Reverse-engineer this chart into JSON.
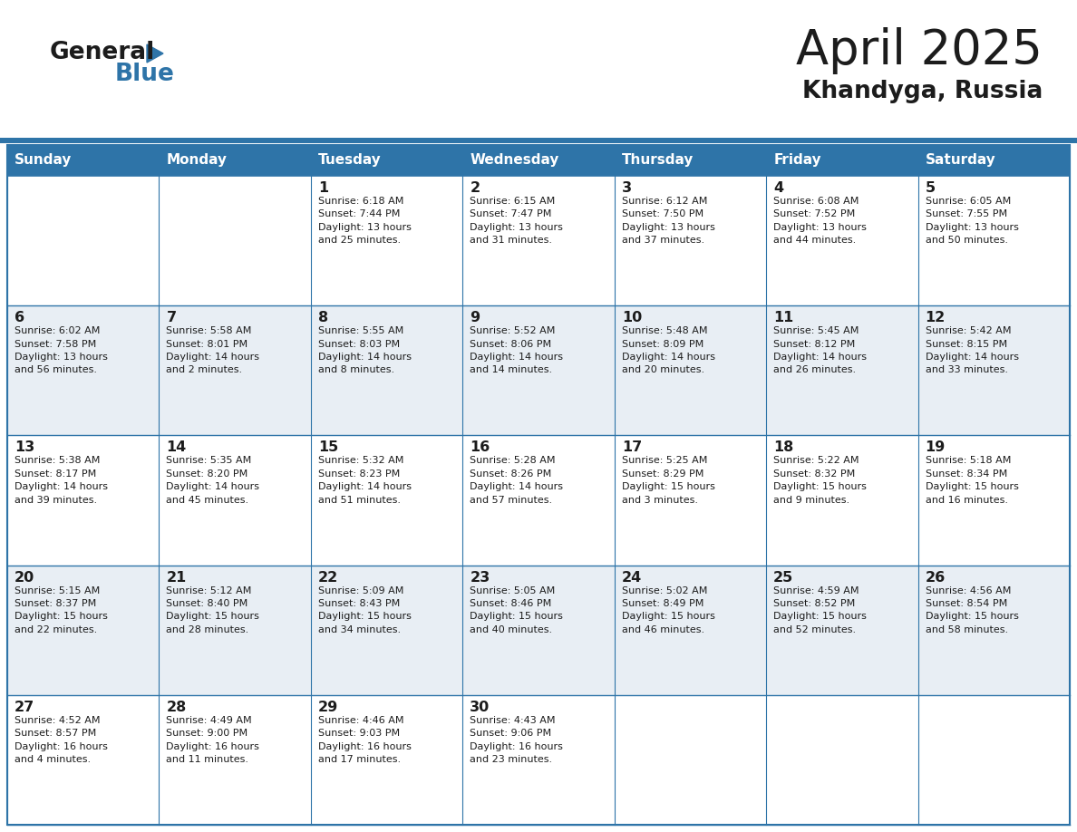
{
  "title": "April 2025",
  "subtitle": "Khandyga, Russia",
  "header_color": "#2E74A8",
  "header_text_color": "#FFFFFF",
  "row_colors": [
    "#FFFFFF",
    "#E8EEF4"
  ],
  "border_color": "#2E74A8",
  "cell_border_color": "#AAAAAA",
  "days_of_week": [
    "Sunday",
    "Monday",
    "Tuesday",
    "Wednesday",
    "Thursday",
    "Friday",
    "Saturday"
  ],
  "calendar_data": [
    [
      {
        "day": "",
        "info": ""
      },
      {
        "day": "",
        "info": ""
      },
      {
        "day": "1",
        "info": "Sunrise: 6:18 AM\nSunset: 7:44 PM\nDaylight: 13 hours\nand 25 minutes."
      },
      {
        "day": "2",
        "info": "Sunrise: 6:15 AM\nSunset: 7:47 PM\nDaylight: 13 hours\nand 31 minutes."
      },
      {
        "day": "3",
        "info": "Sunrise: 6:12 AM\nSunset: 7:50 PM\nDaylight: 13 hours\nand 37 minutes."
      },
      {
        "day": "4",
        "info": "Sunrise: 6:08 AM\nSunset: 7:52 PM\nDaylight: 13 hours\nand 44 minutes."
      },
      {
        "day": "5",
        "info": "Sunrise: 6:05 AM\nSunset: 7:55 PM\nDaylight: 13 hours\nand 50 minutes."
      }
    ],
    [
      {
        "day": "6",
        "info": "Sunrise: 6:02 AM\nSunset: 7:58 PM\nDaylight: 13 hours\nand 56 minutes."
      },
      {
        "day": "7",
        "info": "Sunrise: 5:58 AM\nSunset: 8:01 PM\nDaylight: 14 hours\nand 2 minutes."
      },
      {
        "day": "8",
        "info": "Sunrise: 5:55 AM\nSunset: 8:03 PM\nDaylight: 14 hours\nand 8 minutes."
      },
      {
        "day": "9",
        "info": "Sunrise: 5:52 AM\nSunset: 8:06 PM\nDaylight: 14 hours\nand 14 minutes."
      },
      {
        "day": "10",
        "info": "Sunrise: 5:48 AM\nSunset: 8:09 PM\nDaylight: 14 hours\nand 20 minutes."
      },
      {
        "day": "11",
        "info": "Sunrise: 5:45 AM\nSunset: 8:12 PM\nDaylight: 14 hours\nand 26 minutes."
      },
      {
        "day": "12",
        "info": "Sunrise: 5:42 AM\nSunset: 8:15 PM\nDaylight: 14 hours\nand 33 minutes."
      }
    ],
    [
      {
        "day": "13",
        "info": "Sunrise: 5:38 AM\nSunset: 8:17 PM\nDaylight: 14 hours\nand 39 minutes."
      },
      {
        "day": "14",
        "info": "Sunrise: 5:35 AM\nSunset: 8:20 PM\nDaylight: 14 hours\nand 45 minutes."
      },
      {
        "day": "15",
        "info": "Sunrise: 5:32 AM\nSunset: 8:23 PM\nDaylight: 14 hours\nand 51 minutes."
      },
      {
        "day": "16",
        "info": "Sunrise: 5:28 AM\nSunset: 8:26 PM\nDaylight: 14 hours\nand 57 minutes."
      },
      {
        "day": "17",
        "info": "Sunrise: 5:25 AM\nSunset: 8:29 PM\nDaylight: 15 hours\nand 3 minutes."
      },
      {
        "day": "18",
        "info": "Sunrise: 5:22 AM\nSunset: 8:32 PM\nDaylight: 15 hours\nand 9 minutes."
      },
      {
        "day": "19",
        "info": "Sunrise: 5:18 AM\nSunset: 8:34 PM\nDaylight: 15 hours\nand 16 minutes."
      }
    ],
    [
      {
        "day": "20",
        "info": "Sunrise: 5:15 AM\nSunset: 8:37 PM\nDaylight: 15 hours\nand 22 minutes."
      },
      {
        "day": "21",
        "info": "Sunrise: 5:12 AM\nSunset: 8:40 PM\nDaylight: 15 hours\nand 28 minutes."
      },
      {
        "day": "22",
        "info": "Sunrise: 5:09 AM\nSunset: 8:43 PM\nDaylight: 15 hours\nand 34 minutes."
      },
      {
        "day": "23",
        "info": "Sunrise: 5:05 AM\nSunset: 8:46 PM\nDaylight: 15 hours\nand 40 minutes."
      },
      {
        "day": "24",
        "info": "Sunrise: 5:02 AM\nSunset: 8:49 PM\nDaylight: 15 hours\nand 46 minutes."
      },
      {
        "day": "25",
        "info": "Sunrise: 4:59 AM\nSunset: 8:52 PM\nDaylight: 15 hours\nand 52 minutes."
      },
      {
        "day": "26",
        "info": "Sunrise: 4:56 AM\nSunset: 8:54 PM\nDaylight: 15 hours\nand 58 minutes."
      }
    ],
    [
      {
        "day": "27",
        "info": "Sunrise: 4:52 AM\nSunset: 8:57 PM\nDaylight: 16 hours\nand 4 minutes."
      },
      {
        "day": "28",
        "info": "Sunrise: 4:49 AM\nSunset: 9:00 PM\nDaylight: 16 hours\nand 11 minutes."
      },
      {
        "day": "29",
        "info": "Sunrise: 4:46 AM\nSunset: 9:03 PM\nDaylight: 16 hours\nand 17 minutes."
      },
      {
        "day": "30",
        "info": "Sunrise: 4:43 AM\nSunset: 9:06 PM\nDaylight: 16 hours\nand 23 minutes."
      },
      {
        "day": "",
        "info": ""
      },
      {
        "day": "",
        "info": ""
      },
      {
        "day": "",
        "info": ""
      }
    ]
  ]
}
